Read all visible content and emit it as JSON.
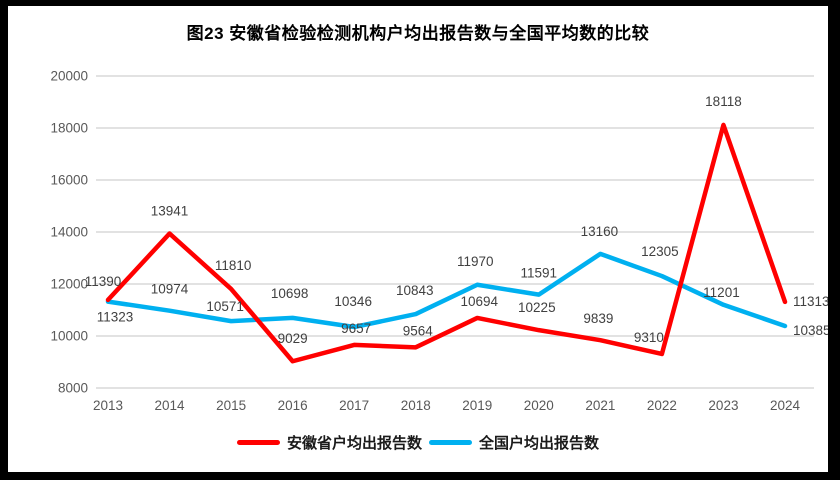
{
  "frame": {
    "background": "#ffffff",
    "border_color": "#000000"
  },
  "title": "图23 安徽省检验检测机构户均出报告数与全国平均数的比较",
  "chart_data": {
    "type": "line",
    "title": "图23 安徽省检验检测机构户均出报告数与全国平均数的比较",
    "categories": [
      "2013",
      "2014",
      "2015",
      "2016",
      "2017",
      "2018",
      "2019",
      "2020",
      "2021",
      "2022",
      "2023",
      "2024"
    ],
    "series": [
      {
        "name": "安徽省户均出报告数",
        "color": "#FF0000",
        "values": [
          11390,
          13941,
          11810,
          9029,
          9657,
          9564,
          10694,
          10225,
          9839,
          9310,
          18118,
          11313
        ]
      },
      {
        "name": "全国户均出报告数",
        "color": "#00B0F0",
        "values": [
          11323,
          10974,
          10571,
          10698,
          10346,
          10843,
          11970,
          11591,
          13160,
          12305,
          11201,
          10385
        ]
      }
    ],
    "ylim": [
      8000,
      20000
    ],
    "yticks": [
      8000,
      10000,
      12000,
      14000,
      16000,
      18000,
      20000
    ],
    "xlabel": "",
    "ylabel": "",
    "grid": true,
    "gridline_color": "#D9D9D9",
    "axis_label_color": "#595959",
    "data_label_color": "#404040",
    "data_labels": true,
    "legend_position": "bottom"
  },
  "legend": {
    "items": [
      {
        "label": "安徽省户均出报告数",
        "color": "#FF0000"
      },
      {
        "label": "全国户均出报告数",
        "color": "#00B0F0"
      }
    ]
  }
}
